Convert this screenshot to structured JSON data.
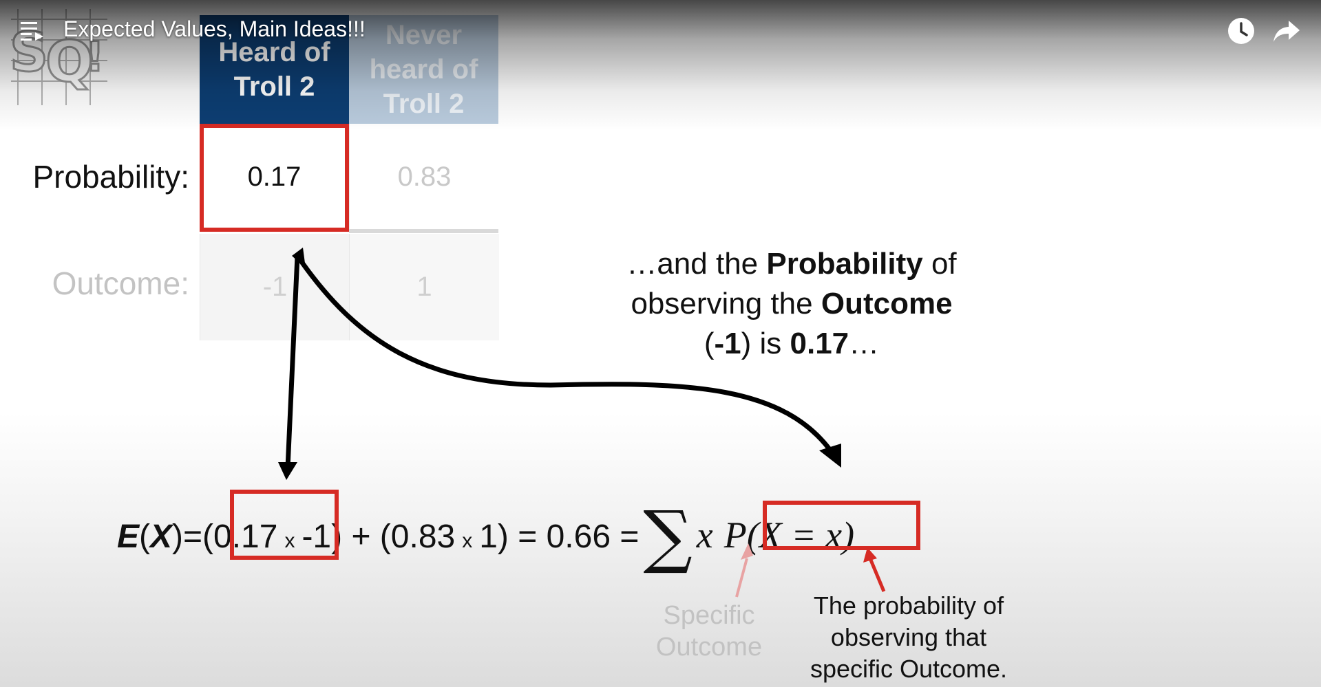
{
  "player": {
    "title": "Expected Values, Main Ideas!!!",
    "icons": [
      "playlist-icon",
      "watch-later-icon",
      "share-icon",
      "statquest-logo"
    ]
  },
  "table": {
    "headers": [
      "Heard of Troll 2",
      "Never heard of Troll 2"
    ],
    "header_lines": [
      [
        "Heard of",
        "Troll 2"
      ],
      [
        "Never",
        "heard of",
        "Troll 2"
      ]
    ],
    "probability_label": "Probability:",
    "outcome_label": "Outcome:",
    "probabilities": [
      "0.17",
      "0.83"
    ],
    "outcomes": [
      "-1",
      "1"
    ]
  },
  "callout": {
    "prefix": "…and the ",
    "bold1": "Probability",
    "mid1": " of observing the ",
    "bold2": "Outcome",
    "open": "(",
    "bold3": "-1",
    "mid2": ") is ",
    "bold4": "0.17",
    "suffix": "…"
  },
  "equation": {
    "E": "E",
    "X": "X",
    "lparen": "(",
    "rparen": ")",
    "eq1": " = ",
    "term1_open": "(0.17",
    "times": "x",
    "term1_close": "-1) + (0.83",
    "term2_close": "1) = 0.66 = ",
    "sum": "∑",
    "x": "x",
    "pxx": "P(X = x)"
  },
  "annotations": {
    "specific_outcome": [
      "Specific",
      "Outcome"
    ],
    "probability_note": [
      "The probability of",
      "observing that",
      "specific Outcome."
    ]
  },
  "colors": {
    "highlight": "#d62b24",
    "header_dark": "#0d3e73",
    "header_light": "#b9cbdd"
  }
}
